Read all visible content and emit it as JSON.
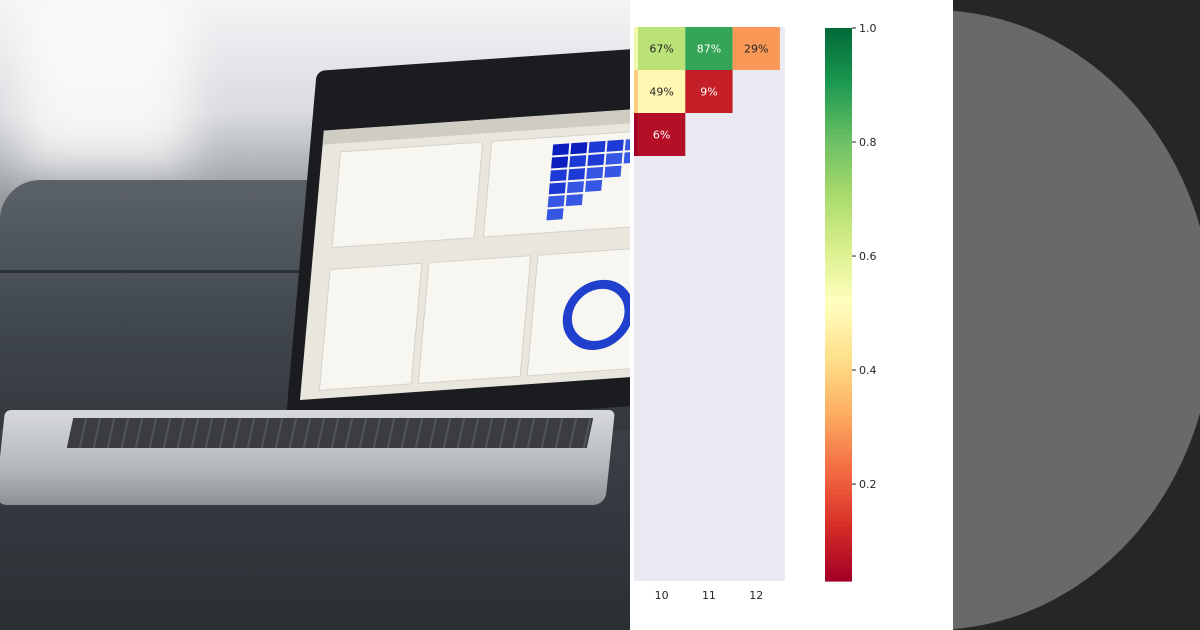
{
  "chart_data": {
    "type": "heatmap",
    "title": "",
    "xlabel": "",
    "ylabel": "",
    "x": [
      "10",
      "11",
      "12"
    ],
    "annotations_format": "percent",
    "rows": [
      {
        "values": [
          0.67,
          0.87,
          0.29
        ],
        "labels": [
          "67%",
          "87%",
          "29%"
        ]
      },
      {
        "values": [
          0.49,
          0.09
        ],
        "labels": [
          "49%",
          "9%"
        ]
      },
      {
        "values": [
          0.06
        ],
        "labels": [
          "6%"
        ]
      }
    ],
    "clipped_left_column": [
      0.55,
      0.38,
      0.03
    ],
    "colorbar": {
      "colormap": "RdYlGn",
      "range": [
        0.03,
        1.0
      ],
      "ticks": [
        "0.2",
        "0.4",
        "0.6",
        "0.8",
        "1.0"
      ]
    },
    "background": "#eaeaf2"
  },
  "colors": {
    "panel_background": "#ffffff",
    "heatmap_background": "#eaeaf2",
    "right_panel_background": "#262626",
    "right_panel_circle": "#696969"
  }
}
